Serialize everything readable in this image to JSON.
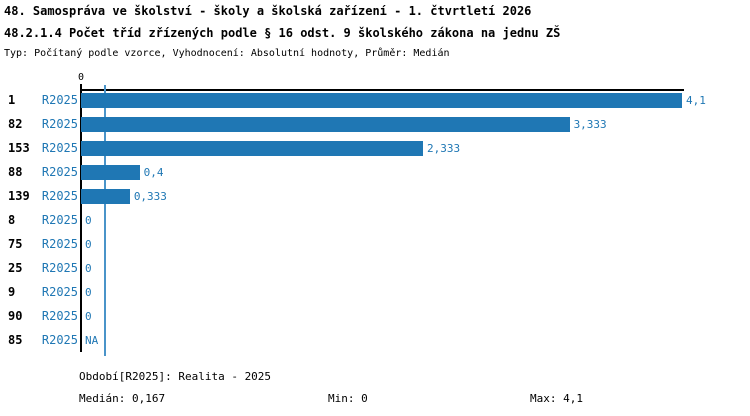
{
  "header": {
    "title1": "48. Samospráva ve školství - školy a školská zařízení - 1. čtvrtletí 2026",
    "title2": "48.2.1.4 Počet tříd zřízených podle § 16 odst. 9 školského zákona na jednu ZŠ",
    "subtitle": "Typ: Počítaný podle vzorce, Vyhodnocení: Absolutní hodnoty, Průměr: Medián"
  },
  "chart_data": {
    "type": "bar",
    "orientation": "horizontal",
    "categories": [
      "1",
      "82",
      "153",
      "88",
      "139",
      "8",
      "75",
      "25",
      "9",
      "90",
      "85"
    ],
    "series_label": "R2025",
    "values": [
      4.1,
      3.333,
      2.333,
      0.4,
      0.333,
      0,
      0,
      0,
      0,
      0,
      null
    ],
    "value_labels": [
      "4,1",
      "3,333",
      "2,333",
      "0,4",
      "0,333",
      "0",
      "0",
      "0",
      "0",
      "0",
      "NA"
    ],
    "xlim": [
      0,
      4.1
    ],
    "x_tick_labels": [
      "0"
    ],
    "median_line_value": 0.167,
    "bar_color": "#1f77b4",
    "value_label_color": "#1f77b4",
    "series_label_color": "#1f77b4",
    "median_line_color": "#4a94c9",
    "axis_color": "#000000",
    "grid": false,
    "legend_position": "none",
    "stats": {
      "median": 0.167,
      "min": 0,
      "max": 4.1
    }
  },
  "footer": {
    "period": "Období[R2025]: Realita - 2025",
    "median": "Medián: 0,167",
    "min": "Min: 0",
    "max": "Max: 4,1"
  },
  "colors": {
    "accent_blue": "#1f77b4",
    "text_black": "#000000",
    "background": "#ffffff"
  }
}
